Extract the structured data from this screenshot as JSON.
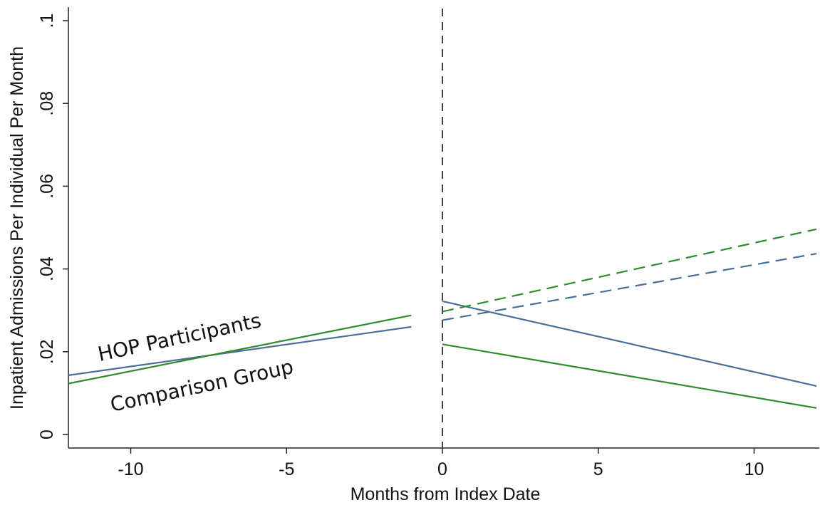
{
  "chart_data": {
    "type": "line",
    "xlabel": "Months from Index Date",
    "ylabel": "Inpatient Admissions Per Individual Per Month",
    "xlim": [
      -12,
      12
    ],
    "ylim": [
      0,
      0.1
    ],
    "x_ticks": [
      -10,
      -5,
      0,
      5,
      10
    ],
    "x_tick_labels": [
      "-10",
      "-5",
      "0",
      "5",
      "10"
    ],
    "y_ticks": [
      0,
      0.02,
      0.04,
      0.06,
      0.08,
      0.1
    ],
    "y_tick_labels": [
      "0",
      ".02",
      ".04",
      ".06",
      ".08",
      ".1"
    ],
    "grid": false,
    "legend": "none",
    "reference_line": {
      "x": 0,
      "style": "dashed",
      "color": "#404040"
    },
    "annotations": [
      {
        "text": "HOP Participants",
        "x": -11,
        "y": 0.0177,
        "rotate": -12
      },
      {
        "text": "Comparison Group",
        "x": -10.6,
        "y": 0.0055,
        "rotate": -12
      }
    ],
    "colors": {
      "hop": "#4a6f96",
      "comparison": "#2e8b2e"
    },
    "series": [
      {
        "key": "hop_pre",
        "group": "hop",
        "style": "solid",
        "x": [
          -12,
          -1
        ],
        "values": [
          0.0143,
          0.026
        ]
      },
      {
        "key": "comparison_pre",
        "group": "comparison",
        "style": "solid",
        "x": [
          -12,
          -1
        ],
        "values": [
          0.0123,
          0.0288
        ]
      },
      {
        "key": "hop_post",
        "group": "hop",
        "style": "solid",
        "x": [
          0,
          12
        ],
        "values": [
          0.0322,
          0.0117
        ]
      },
      {
        "key": "comparison_post",
        "group": "comparison",
        "style": "solid",
        "x": [
          0,
          12
        ],
        "values": [
          0.0218,
          0.0064
        ]
      },
      {
        "key": "hop_post_counterfactual",
        "group": "hop",
        "style": "dashed",
        "x": [
          0,
          12
        ],
        "values": [
          0.0276,
          0.0437
        ]
      },
      {
        "key": "comparison_post_counterfactual",
        "group": "comparison",
        "style": "dashed",
        "x": [
          0,
          12
        ],
        "values": [
          0.0297,
          0.0496
        ]
      }
    ]
  }
}
